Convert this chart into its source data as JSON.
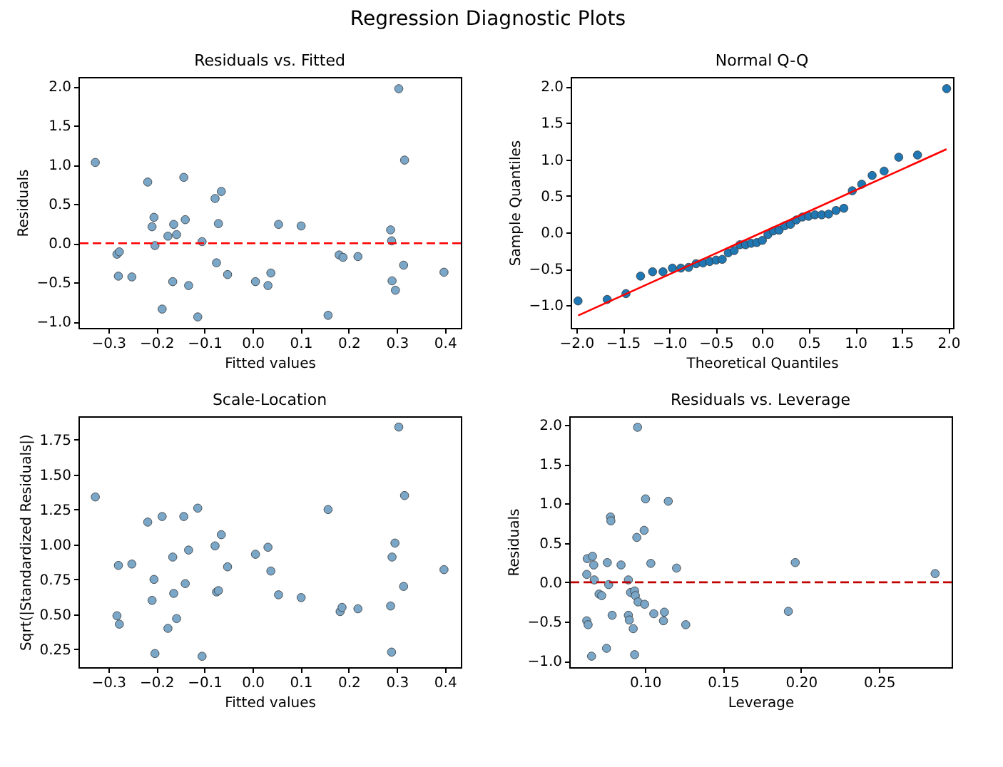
{
  "chart_data": [
    {
      "type": "scatter",
      "title": "Residuals vs. Fitted",
      "xlabel": "Fitted values",
      "ylabel": "Residuals",
      "annotations": [
        "Regression Diagnostic Plots"
      ],
      "x": [
        -0.327,
        0.304,
        0.316,
        -0.218,
        -0.143,
        -0.078,
        -0.065,
        -0.205,
        -0.209,
        -0.164,
        -0.14,
        -0.071,
        -0.176,
        -0.158,
        0.054,
        0.101,
        0.287,
        0.289,
        -0.203,
        -0.105,
        -0.282,
        -0.277,
        -0.279,
        -0.251,
        -0.166,
        -0.133,
        -0.075,
        -0.052,
        0.006,
        0.032,
        0.038,
        -0.188,
        -0.114,
        0.157,
        0.18,
        0.188,
        0.219,
        0.314,
        0.29,
        0.297,
        0.398
      ],
      "series": [
        {
          "color": "#7aa6c8",
          "values": [
            1.03,
            1.97,
            1.06,
            0.78,
            0.84,
            0.57,
            0.66,
            0.33,
            0.21,
            0.24,
            0.3,
            0.25,
            0.09,
            0.11,
            0.24,
            0.22,
            0.17,
            0.03,
            -0.03,
            0.02,
            -0.14,
            -0.11,
            -0.42,
            -0.43,
            -0.49,
            -0.54,
            -0.25,
            -0.4,
            -0.49,
            -0.54,
            -0.38,
            -0.84,
            -0.94,
            -0.92,
            -0.15,
            -0.18,
            -0.17,
            -0.28,
            -0.48,
            -0.6,
            -0.37
          ]
        }
      ],
      "xlim": [
        -0.362,
        0.433
      ],
      "ylim": [
        -1.08,
        2.12
      ],
      "xticks": [
        {
          "value": -0.3,
          "label": "−0.3"
        },
        {
          "value": -0.2,
          "label": "−0.2"
        },
        {
          "value": -0.1,
          "label": "−0.1"
        },
        {
          "value": 0,
          "label": "0.0"
        },
        {
          "value": 0.1,
          "label": "0.1"
        },
        {
          "value": 0.2,
          "label": "0.2"
        },
        {
          "value": 0.3,
          "label": "0.3"
        },
        {
          "value": 0.4,
          "label": "0.4"
        }
      ],
      "yticks": [
        {
          "value": -1,
          "label": "−1.0"
        },
        {
          "value": -0.5,
          "label": "−0.5"
        },
        {
          "value": 0,
          "label": "0.0"
        },
        {
          "value": 0.5,
          "label": "0.5"
        },
        {
          "value": 1,
          "label": "1.0"
        },
        {
          "value": 1.5,
          "label": "1.5"
        },
        {
          "value": 2,
          "label": "2.0"
        }
      ],
      "ref_lines": [
        {
          "axis": "y",
          "value": 0,
          "color": "#ff0000",
          "line_style": "dashed"
        }
      ],
      "marker": "circle"
    },
    {
      "type": "scatter",
      "title": "Normal Q-Q",
      "xlabel": "Theoretical Quantiles",
      "ylabel": "Sample Quantiles",
      "series": [
        {
          "type": "scatter",
          "marker": "circle",
          "color": "#1f77b4",
          "x": [
            -1.981,
            -1.668,
            -1.466,
            -1.309,
            -1.18,
            -1.068,
            -0.967,
            -0.876,
            -0.792,
            -0.712,
            -0.638,
            -0.566,
            -0.497,
            -0.431,
            -0.366,
            -0.303,
            -0.241,
            -0.18,
            -0.12,
            -0.06,
            0,
            0.06,
            0.12,
            0.18,
            0.241,
            0.303,
            0.366,
            0.431,
            0.497,
            0.566,
            0.638,
            0.712,
            0.792,
            0.876,
            0.967,
            1.068,
            1.18,
            1.309,
            1.466,
            1.668,
            1.981
          ],
          "values": [
            -0.94,
            -0.92,
            -0.84,
            -0.6,
            -0.54,
            -0.54,
            -0.49,
            -0.49,
            -0.48,
            -0.43,
            -0.42,
            -0.4,
            -0.38,
            -0.37,
            -0.28,
            -0.25,
            -0.17,
            -0.17,
            -0.15,
            -0.14,
            -0.11,
            -0.03,
            0.02,
            0.03,
            0.09,
            0.11,
            0.17,
            0.21,
            0.22,
            0.24,
            0.24,
            0.25,
            0.3,
            0.33,
            0.57,
            0.66,
            0.78,
            0.84,
            1.03,
            1.06,
            1.97
          ]
        },
        {
          "type": "line",
          "marker": "none",
          "color": "#ff0000",
          "x": [
            -1.98,
            1.98
          ],
          "values": [
            -1.14,
            1.14
          ]
        }
      ],
      "xlim": [
        -2.06,
        2.05
      ],
      "ylim": [
        -1.31,
        2.13
      ],
      "xticks": [
        {
          "value": -2,
          "label": "−2.0"
        },
        {
          "value": -1.5,
          "label": "−1.5"
        },
        {
          "value": -1,
          "label": "−1.0"
        },
        {
          "value": -0.5,
          "label": "−0.5"
        },
        {
          "value": 0,
          "label": "0.0"
        },
        {
          "value": 0.5,
          "label": "0.5"
        },
        {
          "value": 1,
          "label": "1.0"
        },
        {
          "value": 1.5,
          "label": "1.5"
        },
        {
          "value": 2,
          "label": "2.0"
        }
      ],
      "yticks": [
        {
          "value": -1,
          "label": "−1.0"
        },
        {
          "value": -0.5,
          "label": "−0.5"
        },
        {
          "value": 0,
          "label": "0.0"
        },
        {
          "value": 0.5,
          "label": "0.5"
        },
        {
          "value": 1,
          "label": "1.0"
        },
        {
          "value": 1.5,
          "label": "1.5"
        },
        {
          "value": 2,
          "label": "2.0"
        }
      ],
      "line_style": "solid"
    },
    {
      "type": "scatter",
      "title": "Scale-Location",
      "xlabel": "Fitted values",
      "ylabel": "Sqrt(|Standardized Residuals|)",
      "x": [
        -0.327,
        0.304,
        0.316,
        -0.218,
        -0.188,
        -0.143,
        -0.114,
        0.157,
        -0.065,
        -0.078,
        -0.133,
        -0.166,
        0.006,
        0.032,
        0.296,
        0.29,
        -0.279,
        -0.251,
        -0.052,
        0.038,
        0.398,
        -0.205,
        -0.14,
        0.314,
        -0.075,
        -0.071,
        -0.164,
        -0.209,
        0.054,
        0.101,
        0.182,
        0.186,
        0.219,
        0.287,
        -0.282,
        -0.277,
        -0.158,
        -0.176,
        -0.203,
        -0.105,
        0.289
      ],
      "series": [
        {
          "color": "#7aa6c8",
          "values": [
            1.34,
            1.84,
            1.35,
            1.16,
            1.2,
            1.2,
            1.26,
            1.25,
            1.07,
            0.99,
            0.96,
            0.91,
            0.93,
            0.98,
            1.01,
            0.91,
            0.85,
            0.86,
            0.84,
            0.81,
            0.82,
            0.75,
            0.72,
            0.7,
            0.66,
            0.67,
            0.65,
            0.6,
            0.64,
            0.62,
            0.52,
            0.55,
            0.54,
            0.56,
            0.49,
            0.43,
            0.47,
            0.4,
            0.22,
            0.2,
            0.23
          ]
        }
      ],
      "xlim": [
        -0.362,
        0.433
      ],
      "ylim": [
        0.122,
        1.917
      ],
      "xticks": [
        {
          "value": -0.3,
          "label": "−0.3"
        },
        {
          "value": -0.2,
          "label": "−0.2"
        },
        {
          "value": -0.1,
          "label": "−0.1"
        },
        {
          "value": 0,
          "label": "0.0"
        },
        {
          "value": 0.1,
          "label": "0.1"
        },
        {
          "value": 0.2,
          "label": "0.2"
        },
        {
          "value": 0.3,
          "label": "0.3"
        },
        {
          "value": 0.4,
          "label": "0.4"
        }
      ],
      "yticks": [
        {
          "value": 0.25,
          "label": "0.25"
        },
        {
          "value": 0.5,
          "label": "0.50"
        },
        {
          "value": 0.75,
          "label": "0.75"
        },
        {
          "value": 1,
          "label": "1.00"
        },
        {
          "value": 1.25,
          "label": "1.25"
        },
        {
          "value": 1.5,
          "label": "1.50"
        },
        {
          "value": 1.75,
          "label": "1.75"
        }
      ],
      "marker": "circle"
    },
    {
      "type": "scatter",
      "title": "Residuals vs. Leverage",
      "xlabel": "Leverage",
      "ylabel": "Residuals",
      "x": [
        0.0952,
        0.1003,
        0.1149,
        0.0778,
        0.0781,
        0.0994,
        0.0947,
        0.0629,
        0.0663,
        0.0671,
        0.0758,
        0.0846,
        0.1037,
        0.1202,
        0.1963,
        0.286,
        0.0626,
        0.0674,
        0.0767,
        0.0893,
        0.0705,
        0.0722,
        0.0907,
        0.0933,
        0.0938,
        0.0955,
        0.0997,
        0.1056,
        0.1124,
        0.1919,
        0.0893,
        0.0789,
        0.0899,
        0.1118,
        0.1261,
        0.0626,
        0.0635,
        0.0924,
        0.0753,
        0.0933,
        0.0657
      ],
      "series": [
        {
          "color": "#7aa6c8",
          "values": [
            1.97,
            1.06,
            1.03,
            0.83,
            0.78,
            0.66,
            0.57,
            0.3,
            0.33,
            0.22,
            0.25,
            0.22,
            0.24,
            0.18,
            0.25,
            0.11,
            0.1,
            0.03,
            -0.03,
            0.03,
            -0.15,
            -0.17,
            -0.13,
            -0.11,
            -0.17,
            -0.25,
            -0.28,
            -0.4,
            -0.38,
            -0.37,
            -0.42,
            -0.42,
            -0.48,
            -0.49,
            -0.54,
            -0.49,
            -0.54,
            -0.59,
            -0.84,
            -0.92,
            -0.94
          ]
        }
      ],
      "xlim": [
        0.0514,
        0.2966
      ],
      "ylim": [
        -1.08,
        2.11
      ],
      "xticks": [
        {
          "value": 0.1,
          "label": "0.10"
        },
        {
          "value": 0.15,
          "label": "0.15"
        },
        {
          "value": 0.2,
          "label": "0.20"
        },
        {
          "value": 0.25,
          "label": "0.25"
        }
      ],
      "yticks": [
        {
          "value": -1,
          "label": "−1.0"
        },
        {
          "value": -0.5,
          "label": "−0.5"
        },
        {
          "value": 0,
          "label": "0.0"
        },
        {
          "value": 0.5,
          "label": "0.5"
        },
        {
          "value": 1,
          "label": "1.0"
        },
        {
          "value": 1.5,
          "label": "1.5"
        },
        {
          "value": 2,
          "label": "2.0"
        }
      ],
      "ref_lines": [
        {
          "axis": "y",
          "value": 0,
          "color": "#c00000",
          "line_style": "dashed"
        }
      ],
      "marker": "circle"
    }
  ]
}
